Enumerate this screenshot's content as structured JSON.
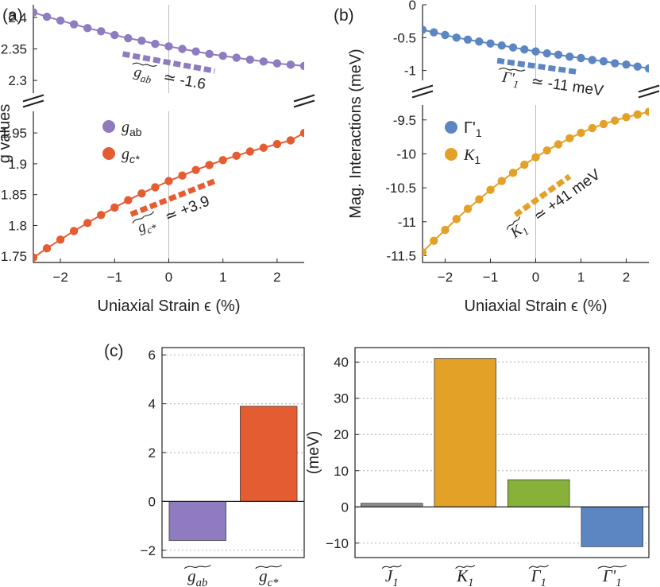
{
  "colors": {
    "gab": "#8f7bbf",
    "gc": "#e45c32",
    "gamma": "#5b86c2",
    "k1": "#e3a127",
    "j1": "#8a8a8a",
    "g1": "#86b23a",
    "axis": "#222222",
    "grid": "#bbbbbb",
    "zero": "#bdbdbd"
  },
  "chart_data": [
    {
      "panel": "a",
      "panel_label": "(a)",
      "type": "line",
      "xlabel": "Uniaxial Strain ϵ (%)",
      "ylabel": "g values",
      "xlim": [
        -2.5,
        2.5
      ],
      "xticks": [
        -2,
        -1,
        0,
        1,
        2
      ],
      "xtick_labels": [
        "−2",
        "−1",
        "0",
        "1",
        "2"
      ],
      "broken_axis": true,
      "upper": {
        "ylim": [
          2.28,
          2.42
        ],
        "yticks": [
          2.3,
          2.35,
          2.4
        ],
        "ytick_labels": [
          "2.3",
          "2.35",
          "2.4"
        ]
      },
      "lower": {
        "ylim": [
          1.74,
          1.985
        ],
        "yticks": [
          1.75,
          1.8,
          1.85,
          1.9,
          1.95
        ],
        "ytick_labels": [
          "1.75",
          "1.8",
          "1.85",
          "1.9",
          "1.95"
        ]
      },
      "series": [
        {
          "name": "g_ab",
          "legend": "g",
          "legend_sub": "ab",
          "color_key": "gab",
          "segment": "upper",
          "x": [
            -2.5,
            -2.25,
            -2.0,
            -1.75,
            -1.5,
            -1.25,
            -1.0,
            -0.75,
            -0.5,
            -0.25,
            0.0,
            0.25,
            0.5,
            0.75,
            1.0,
            1.25,
            1.5,
            1.75,
            2.0,
            2.25,
            2.5
          ],
          "values": [
            2.408,
            2.401,
            2.395,
            2.389,
            2.383,
            2.378,
            2.372,
            2.367,
            2.363,
            2.358,
            2.354,
            2.35,
            2.346,
            2.342,
            2.339,
            2.336,
            2.333,
            2.33,
            2.327,
            2.325,
            2.323
          ]
        },
        {
          "name": "g_c*",
          "legend": "g",
          "legend_sub": "c*",
          "color_key": "gc",
          "segment": "lower",
          "x": [
            -2.5,
            -2.25,
            -2.0,
            -1.75,
            -1.5,
            -1.25,
            -1.0,
            -0.75,
            -0.5,
            -0.25,
            0.0,
            0.25,
            0.5,
            0.75,
            1.0,
            1.25,
            1.5,
            1.75,
            2.0,
            2.25,
            2.5
          ],
          "values": [
            1.748,
            1.763,
            1.777,
            1.791,
            1.804,
            1.817,
            1.829,
            1.841,
            1.852,
            1.862,
            1.872,
            1.881,
            1.89,
            1.898,
            1.906,
            1.913,
            1.92,
            1.926,
            1.932,
            1.938,
            1.95
          ]
        }
      ],
      "slopes": [
        {
          "color_key": "gab",
          "segment": "upper",
          "x1": -0.85,
          "y1": 2.342,
          "x2": 0.85,
          "y2": 2.315,
          "base": "g",
          "sub": "ab",
          "text": "≃ -1.6"
        },
        {
          "color_key": "gc",
          "segment": "lower",
          "x1": -0.7,
          "y1": 1.818,
          "x2": 0.85,
          "y2": 1.872,
          "base": "g",
          "sub": "c*",
          "text": "≃ +3.9"
        }
      ]
    },
    {
      "panel": "b",
      "panel_label": "(b)",
      "type": "line",
      "xlabel": "Uniaxial Strain ϵ (%)",
      "ylabel": "Mag. Interactions (meV)",
      "xlim": [
        -2.5,
        2.5
      ],
      "xticks": [
        -2,
        -1,
        0,
        1,
        2
      ],
      "xtick_labels": [
        "−2",
        "−1",
        "0",
        "1",
        "2"
      ],
      "broken_axis": true,
      "upper": {
        "ylim": [
          -1.15,
          0.0
        ],
        "yticks": [
          -1,
          -0.5,
          0
        ],
        "ytick_labels": [
          "-1",
          "-0.5",
          "0"
        ]
      },
      "lower": {
        "ylim": [
          -11.6,
          -9.28
        ],
        "yticks": [
          -11.5,
          -11,
          -10.5,
          -10,
          -9.5
        ],
        "ytick_labels": [
          "-11.5",
          "-11",
          "-10.5",
          "-10",
          "-9.5"
        ]
      },
      "series": [
        {
          "name": "Γ'1",
          "legend": "Γ'",
          "legend_sub": "1",
          "color_key": "gamma",
          "segment": "upper",
          "x": [
            -2.5,
            -2.25,
            -2.0,
            -1.75,
            -1.5,
            -1.25,
            -1.0,
            -0.75,
            -0.5,
            -0.25,
            0.0,
            0.25,
            0.5,
            0.75,
            1.0,
            1.25,
            1.5,
            1.75,
            2.0,
            2.25,
            2.5
          ],
          "values": [
            -0.38,
            -0.42,
            -0.46,
            -0.5,
            -0.53,
            -0.56,
            -0.59,
            -0.62,
            -0.65,
            -0.68,
            -0.71,
            -0.74,
            -0.76,
            -0.79,
            -0.81,
            -0.84,
            -0.86,
            -0.89,
            -0.91,
            -0.94,
            -0.97
          ]
        },
        {
          "name": "K1",
          "legend": "K",
          "legend_sub": "1",
          "color_key": "k1",
          "segment": "lower",
          "x": [
            -2.5,
            -2.25,
            -2.0,
            -1.75,
            -1.5,
            -1.25,
            -1.0,
            -0.75,
            -0.5,
            -0.25,
            0.0,
            0.25,
            0.5,
            0.75,
            1.0,
            1.25,
            1.5,
            1.75,
            2.0,
            2.25,
            2.5
          ],
          "values": [
            -11.45,
            -11.28,
            -11.12,
            -10.96,
            -10.81,
            -10.67,
            -10.53,
            -10.4,
            -10.28,
            -10.16,
            -10.05,
            -9.95,
            -9.86,
            -9.77,
            -9.69,
            -9.62,
            -9.56,
            -9.51,
            -9.46,
            -9.42,
            -9.38
          ]
        }
      ],
      "slopes": [
        {
          "color_key": "gamma",
          "segment": "upper",
          "x1": -0.85,
          "y1": -0.85,
          "x2": 0.9,
          "y2": -1.02,
          "base": "Γ'",
          "sub": "1",
          "text": "≃ -11 meV"
        },
        {
          "color_key": "k1",
          "segment": "lower",
          "x1": -0.45,
          "y1": -10.9,
          "x2": 0.75,
          "y2": -10.33,
          "base": "K",
          "sub": "1",
          "text": "≃ +41 meV"
        }
      ]
    },
    {
      "panel": "c",
      "panel_label": "(c)",
      "type": "bar",
      "ylim": [
        -2.3,
        6.3
      ],
      "yticks": [
        -2,
        0,
        2,
        4,
        6
      ],
      "ytick_labels": [
        "−2",
        "0",
        "2",
        "4",
        "6"
      ],
      "categories": [
        {
          "base": "g",
          "sub": "ab"
        },
        {
          "base": "g",
          "sub": "c*"
        }
      ],
      "values": [
        -1.6,
        3.9
      ],
      "color_keys": [
        "gab",
        "gc"
      ]
    },
    {
      "panel": "c-right",
      "type": "bar",
      "ylabel": "(meV)",
      "ylim": [
        -14,
        44
      ],
      "yticks": [
        -10,
        0,
        10,
        20,
        30,
        40
      ],
      "ytick_labels": [
        "−10",
        "0",
        "10",
        "20",
        "30",
        "40"
      ],
      "categories": [
        {
          "base": "J",
          "sub": "1"
        },
        {
          "base": "K",
          "sub": "1"
        },
        {
          "base": "Γ",
          "sub": "1"
        },
        {
          "base": "Γ'",
          "sub": "1"
        }
      ],
      "values": [
        1.0,
        41.0,
        7.5,
        -11.0
      ],
      "color_keys": [
        "j1",
        "k1",
        "g1",
        "gamma"
      ]
    }
  ]
}
